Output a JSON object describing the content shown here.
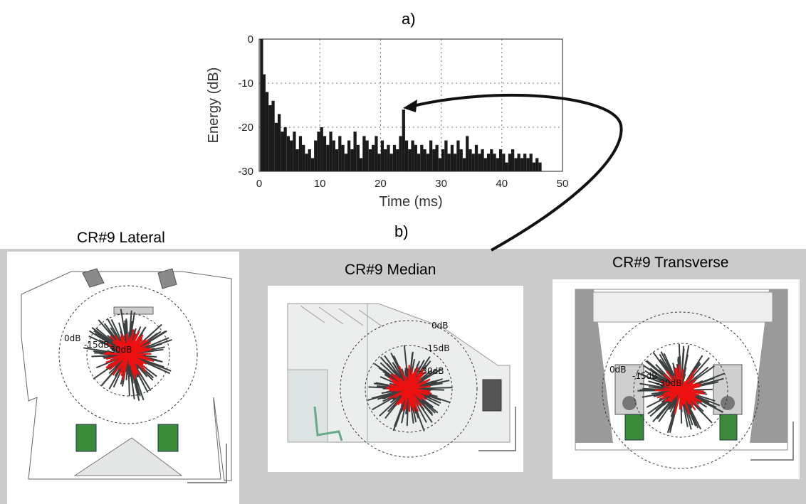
{
  "figure": {
    "label_a": "a)",
    "label_b": "b)"
  },
  "chart_data": {
    "type": "bar",
    "title": "",
    "xlabel": "Time (ms)",
    "ylabel": "Energy (dB)",
    "xlim": [
      0,
      50
    ],
    "ylim": [
      -30,
      0
    ],
    "xticks": [
      "0",
      "10",
      "20",
      "30",
      "40",
      "50"
    ],
    "yticks": [
      "0",
      "-10",
      "-20",
      "-30"
    ],
    "grid": true,
    "baseline": -30,
    "x": [
      0.4,
      0.8,
      1.3,
      1.8,
      2.3,
      2.8,
      3.3,
      3.8,
      4.3,
      4.8,
      5.3,
      5.8,
      6.3,
      6.8,
      7.3,
      7.8,
      8.3,
      8.8,
      9.3,
      9.8,
      10.3,
      10.8,
      11.3,
      11.8,
      12.3,
      12.8,
      13.3,
      13.8,
      14.3,
      14.8,
      15.3,
      15.8,
      16.3,
      16.8,
      17.3,
      17.8,
      18.3,
      18.8,
      19.3,
      19.8,
      20.3,
      20.8,
      21.3,
      21.8,
      22.3,
      22.8,
      23.3,
      23.8,
      24.3,
      24.8,
      25.3,
      25.8,
      26.3,
      26.8,
      27.3,
      27.8,
      28.3,
      28.8,
      29.3,
      29.8,
      30.3,
      30.8,
      31.3,
      31.8,
      32.3,
      32.8,
      33.3,
      33.8,
      34.3,
      34.8,
      35.3,
      35.8,
      36.3,
      36.8,
      37.3,
      37.8,
      38.3,
      38.8,
      39.3,
      39.8,
      40.3,
      40.8,
      41.3,
      41.8,
      42.3,
      42.8,
      43.3,
      43.8,
      44.3,
      44.8,
      45.3,
      45.8,
      46.3
    ],
    "values": [
      0,
      -8,
      -12,
      -15,
      -14,
      -19,
      -17,
      -21,
      -20,
      -22,
      -23,
      -21,
      -25,
      -22,
      -24,
      -26,
      -25,
      -27,
      -23,
      -21,
      -20,
      -22,
      -24,
      -21,
      -23,
      -25,
      -22,
      -24,
      -26,
      -23,
      -25,
      -21,
      -24,
      -27,
      -22,
      -23,
      -25,
      -24,
      -22,
      -26,
      -23,
      -25,
      -24,
      -26,
      -24,
      -25,
      -22,
      -16,
      -23,
      -25,
      -23,
      -24,
      -26,
      -24,
      -25,
      -26,
      -23,
      -25,
      -24,
      -27,
      -25,
      -23,
      -26,
      -24,
      -26,
      -23,
      -25,
      -27,
      -22,
      -25,
      -26,
      -24,
      -26,
      -25,
      -27,
      -26,
      -25,
      -26,
      -27,
      -25,
      -26,
      -28,
      -26,
      -25,
      -27,
      -26,
      -27,
      -26,
      -27,
      -26,
      -28,
      -27,
      -28
    ]
  },
  "panels": {
    "lateral": {
      "title": "CR#9 Lateral",
      "db_labels": [
        "0dB",
        "-15dB",
        "-30dB"
      ]
    },
    "median": {
      "title": "CR#9 Median",
      "db_labels": [
        "0dB",
        "-15dB",
        "-30dB"
      ]
    },
    "transverse": {
      "title": "CR#9 Transverse",
      "db_labels": [
        "0dB",
        "-15dB",
        "-30dB"
      ]
    }
  },
  "colors": {
    "panel_bg": "#cbcbcb",
    "bar_fill": "#1a1a1a",
    "reflection_red": "#ee1111",
    "reflection_dark": "#3a3f3f",
    "chair_green": "#3a8a3a"
  }
}
